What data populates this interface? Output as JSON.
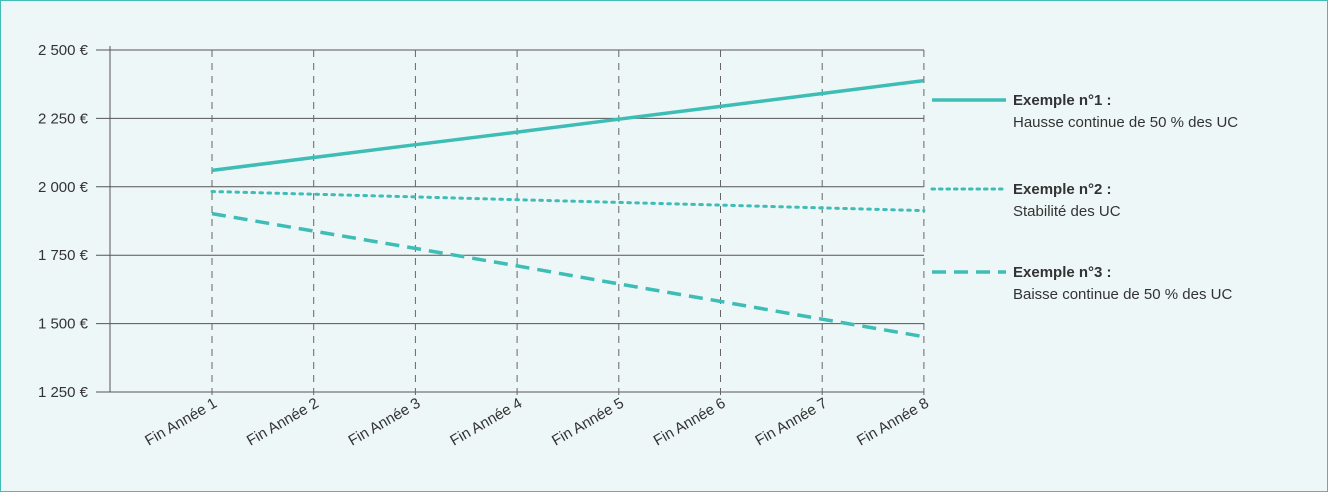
{
  "chart_data": {
    "type": "line",
    "categories": [
      "Fin Année 1",
      "Fin Année 2",
      "Fin Année 3",
      "Fin Année 4",
      "Fin Année 5",
      "Fin Année 6",
      "Fin Année 7",
      "Fin Année 8"
    ],
    "y_ticks": [
      "1 250 €",
      "1 500 €",
      "1 750 €",
      "2 000 €",
      "2 250 €",
      "2 500 €"
    ],
    "ylim": [
      1250,
      2500
    ],
    "grid": "horizontal solid, vertical dashed",
    "legend_position": "right",
    "series": [
      {
        "key": "s1",
        "name": "Exemple n°1 :",
        "description": "Hausse continue de 50 % des UC",
        "style": "solid",
        "color": "#3dbdb6",
        "values": [
          2060,
          2107,
          2154,
          2200,
          2247,
          2294,
          2341,
          2388
        ]
      },
      {
        "key": "s2",
        "name": "Exemple n°2 :",
        "description": "Stabilité des UC",
        "style": "dotted",
        "color": "#3dbdb6",
        "values": [
          1983,
          1973,
          1963,
          1953,
          1943,
          1933,
          1923,
          1913
        ]
      },
      {
        "key": "s3",
        "name": "Exemple n°3 :",
        "description": "Baisse continue de 50 % des UC",
        "style": "dashed",
        "color": "#3dbdb6",
        "values": [
          1902,
          1838,
          1775,
          1711,
          1645,
          1581,
          1516,
          1452
        ]
      }
    ]
  }
}
